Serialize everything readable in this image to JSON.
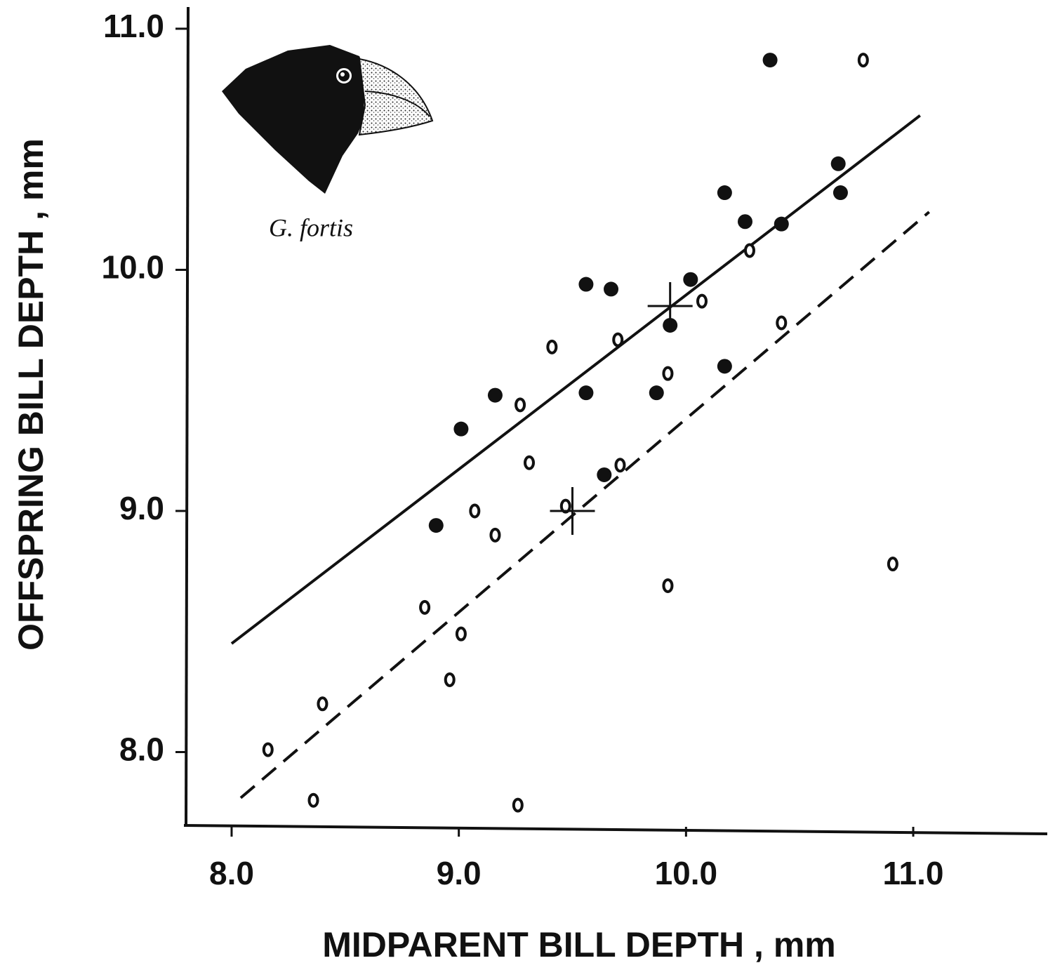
{
  "chart_data": {
    "type": "scatter",
    "x_label": "MIDPARENT BILL DEPTH , mm",
    "y_label": "OFFSPRING BILL DEPTH , mm",
    "annotation": "G. fortis",
    "xlim": [
      7.79,
      11.59
    ],
    "ylim": [
      7.69,
      11.09
    ],
    "xticks": [
      {
        "value": 8,
        "label": "8.0"
      },
      {
        "value": 9,
        "label": "9.0"
      },
      {
        "value": 10,
        "label": "10.0"
      },
      {
        "value": 11,
        "label": "11.0"
      }
    ],
    "yticks": [
      {
        "value": 8,
        "label": "8.0"
      },
      {
        "value": 9,
        "label": "9.0"
      },
      {
        "value": 10,
        "label": "10.0"
      },
      {
        "value": 11,
        "label": "11.0"
      }
    ],
    "grid": false,
    "series": [
      {
        "marker": "filled",
        "color": "#111111",
        "x": [
          10.37,
          10.67,
          10.68,
          10.17,
          10.26,
          10.42,
          10.02,
          9.56,
          9.67,
          9.93,
          10.17,
          9.16,
          9.56,
          9.87,
          9.01,
          9.64,
          8.9
        ],
        "y": [
          10.87,
          10.44,
          10.32,
          10.32,
          10.2,
          10.19,
          9.96,
          9.94,
          9.92,
          9.77,
          9.6,
          9.48,
          9.49,
          9.49,
          9.34,
          9.15,
          8.94
        ]
      },
      {
        "marker": "open",
        "color": "#111111",
        "x": [
          10.78,
          10.28,
          10.07,
          10.42,
          9.7,
          9.41,
          9.92,
          9.27,
          9.31,
          9.71,
          9.07,
          9.47,
          9.16,
          10.91,
          9.92,
          8.85,
          9.01,
          8.96,
          8.4,
          8.16,
          8.36,
          9.26
        ],
        "y": [
          10.87,
          10.08,
          9.87,
          9.78,
          9.71,
          9.68,
          9.57,
          9.44,
          9.2,
          9.19,
          9.0,
          9.02,
          8.9,
          8.78,
          8.69,
          8.6,
          8.49,
          8.3,
          8.2,
          8.01,
          7.8,
          7.78
        ]
      }
    ],
    "lines": [
      {
        "style": "solid",
        "color": "#111111",
        "x": [
          8.0,
          11.03
        ],
        "y": [
          8.45,
          10.64
        ]
      },
      {
        "style": "dashed",
        "color": "#111111",
        "x": [
          8.04,
          11.07
        ],
        "y": [
          7.81,
          10.24
        ]
      }
    ],
    "means": {
      "color": "#111111",
      "x": [
        9.93,
        9.5
      ],
      "y": [
        9.85,
        9.0
      ]
    }
  }
}
